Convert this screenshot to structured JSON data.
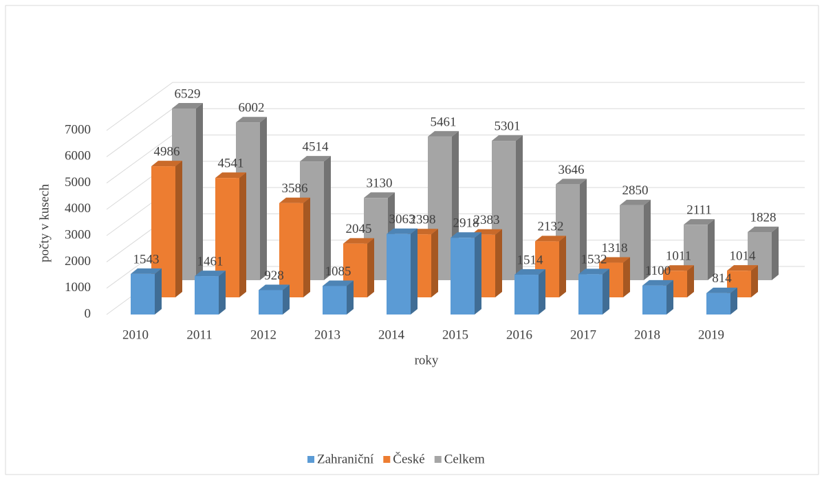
{
  "chart_data": {
    "type": "bar3d",
    "x_label": "roky",
    "y_label": "počty v kusech",
    "categories": [
      "2010",
      "2011",
      "2012",
      "2013",
      "2014",
      "2015",
      "2016",
      "2017",
      "2018",
      "2019"
    ],
    "series": [
      {
        "name": "Zahraniční",
        "color": "#5b9bd5",
        "values": [
          1543,
          1461,
          928,
          1085,
          3063,
          2918,
          1514,
          1532,
          1100,
          814
        ]
      },
      {
        "name": "České",
        "color": "#ed7d31",
        "values": [
          4986,
          4541,
          3586,
          2045,
          2398,
          2383,
          2132,
          1318,
          1011,
          1014
        ]
      },
      {
        "name": "Celkem",
        "color": "#a5a5a5",
        "values": [
          6529,
          6002,
          4514,
          3130,
          5461,
          5301,
          3646,
          2850,
          2111,
          1828
        ]
      }
    ],
    "ylim": [
      0,
      7000
    ],
    "yticks": [
      0,
      1000,
      2000,
      3000,
      4000,
      5000,
      6000,
      7000
    ],
    "grid": true,
    "legend": "bottom"
  }
}
